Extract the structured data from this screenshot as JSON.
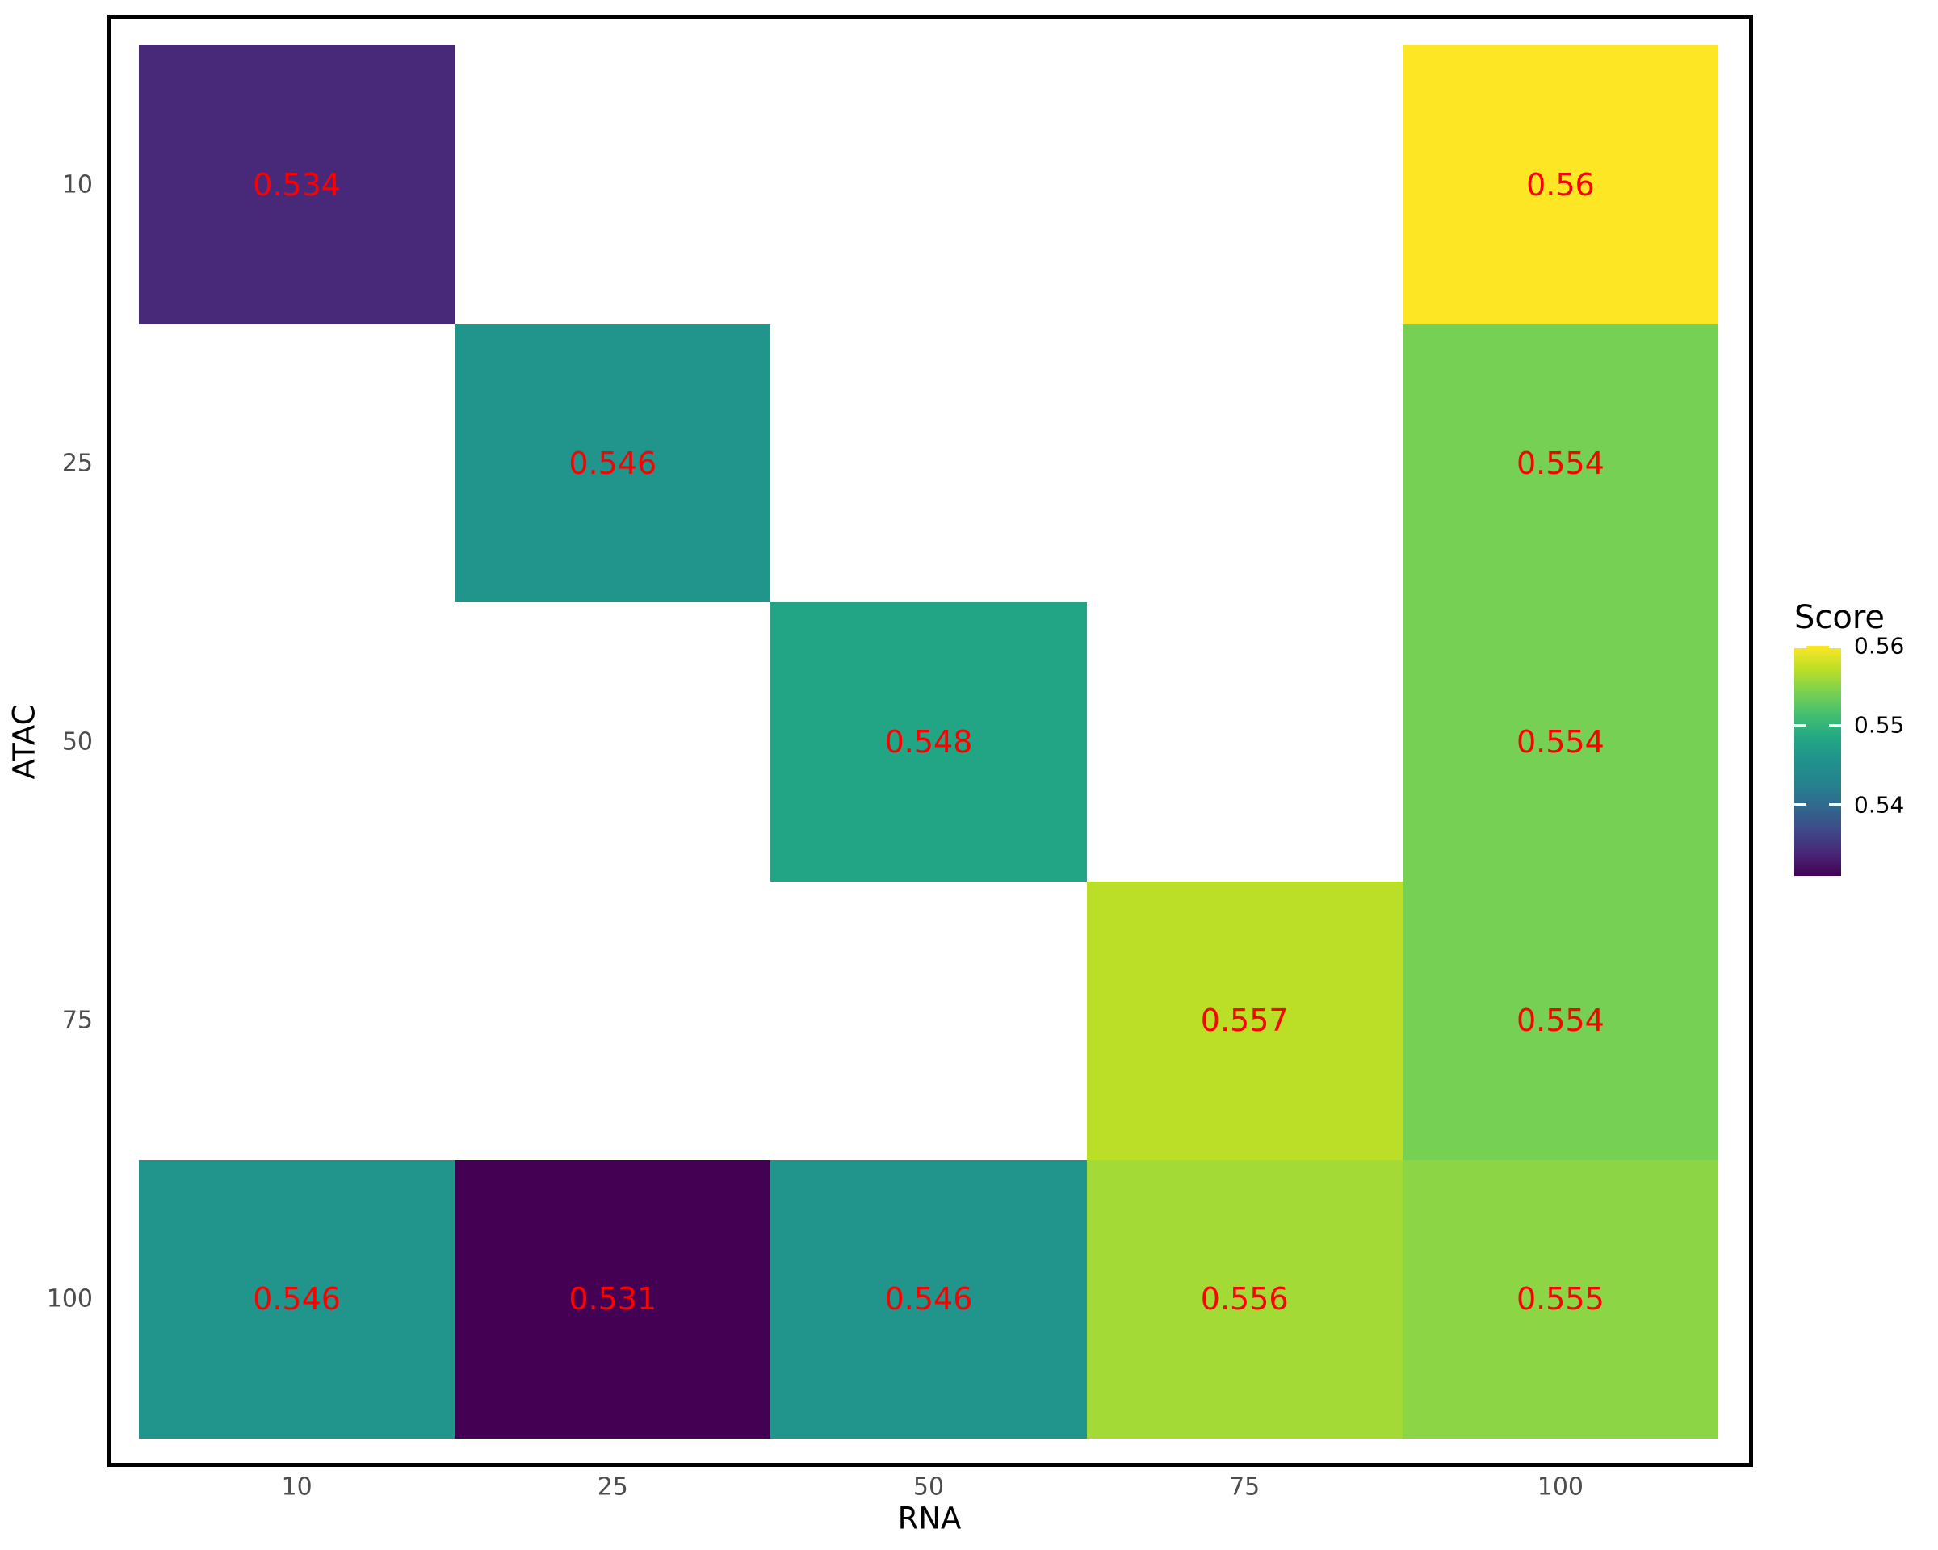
{
  "chart_data": {
    "type": "heatmap",
    "xlabel": "RNA",
    "ylabel": "ATAC",
    "x_categories": [
      "10",
      "25",
      "50",
      "75",
      "100"
    ],
    "y_categories": [
      "10",
      "25",
      "50",
      "75",
      "100"
    ],
    "cells": [
      {
        "x": "10",
        "y": "10",
        "score": 0.534,
        "label": "0.534"
      },
      {
        "x": "100",
        "y": "10",
        "score": 0.56,
        "label": "0.56"
      },
      {
        "x": "25",
        "y": "25",
        "score": 0.546,
        "label": "0.546"
      },
      {
        "x": "100",
        "y": "25",
        "score": 0.554,
        "label": "0.554"
      },
      {
        "x": "50",
        "y": "50",
        "score": 0.548,
        "label": "0.548"
      },
      {
        "x": "100",
        "y": "50",
        "score": 0.554,
        "label": "0.554"
      },
      {
        "x": "75",
        "y": "75",
        "score": 0.557,
        "label": "0.557"
      },
      {
        "x": "100",
        "y": "75",
        "score": 0.554,
        "label": "0.554"
      },
      {
        "x": "10",
        "y": "100",
        "score": 0.546,
        "label": "0.546"
      },
      {
        "x": "25",
        "y": "100",
        "score": 0.531,
        "label": "0.531"
      },
      {
        "x": "50",
        "y": "100",
        "score": 0.546,
        "label": "0.546"
      },
      {
        "x": "75",
        "y": "100",
        "score": 0.556,
        "label": "0.556"
      },
      {
        "x": "100",
        "y": "100",
        "score": 0.555,
        "label": "0.555"
      }
    ],
    "legend": {
      "title": "Score",
      "ticks": [
        {
          "label": "0.56",
          "value": 0.56
        },
        {
          "label": "0.55",
          "value": 0.55
        },
        {
          "label": "0.54",
          "value": 0.54
        }
      ],
      "color_domain": [
        0.531,
        0.56
      ],
      "position": "right"
    },
    "colormap": "viridis",
    "value_label_color": "#ff0000",
    "axis_text_color": "#4d4d4d",
    "panel_border_color": "#000000",
    "grid": "off"
  }
}
